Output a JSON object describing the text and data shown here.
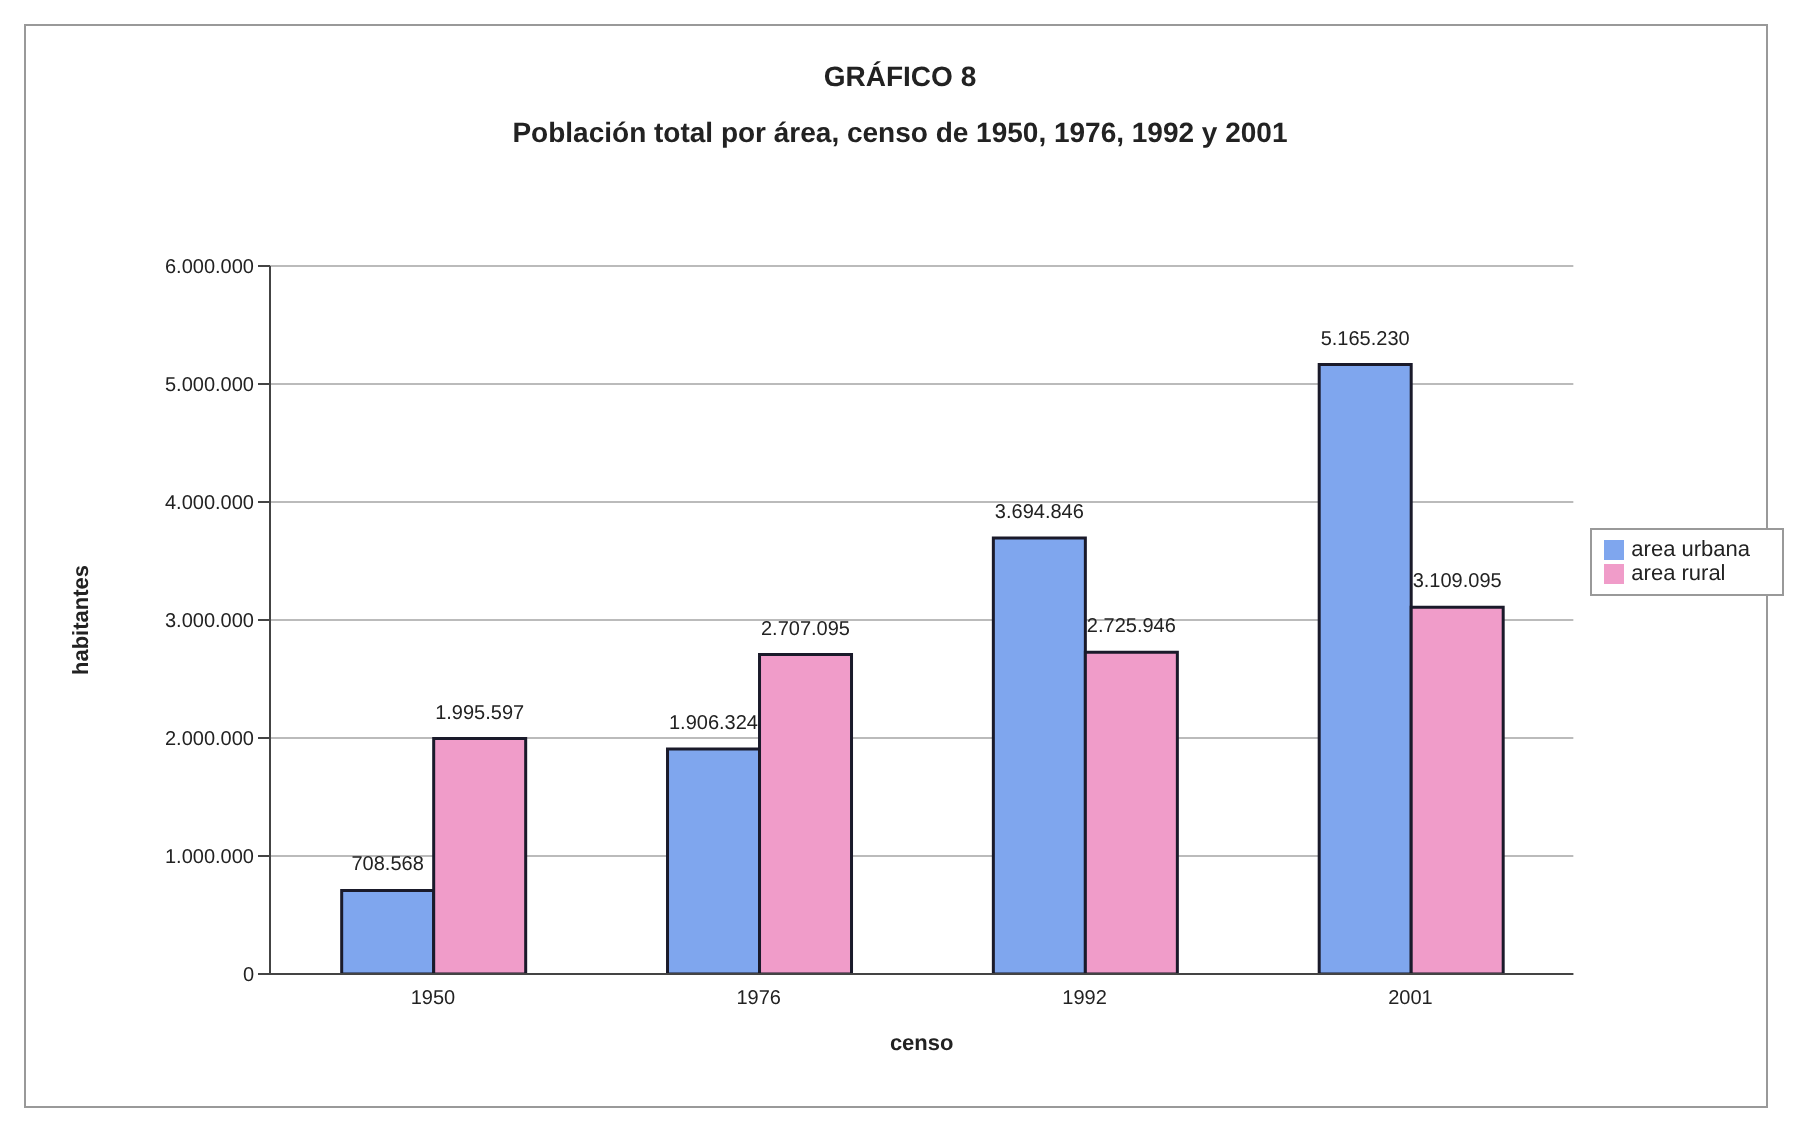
{
  "chart_data": {
    "type": "bar",
    "title": "GRÁFICO 8",
    "subtitle": "Población total por área, censo de 1950, 1976, 1992 y 2001",
    "xlabel": "censo",
    "ylabel": "habitantes",
    "categories": [
      "1950",
      "1976",
      "1992",
      "2001"
    ],
    "series": [
      {
        "name": "area urbana",
        "color": "#7fa6ee",
        "values": [
          708568,
          1906324,
          3694846,
          5165230
        ],
        "value_labels": [
          "708.568",
          "1.906.324",
          "3.694.846",
          "5.165.230"
        ]
      },
      {
        "name": "area rural",
        "color": "#f09cc9",
        "values": [
          1995597,
          2707095,
          2725946,
          3109095
        ],
        "value_labels": [
          "1.995.597",
          "2.707.095",
          "2.725.946",
          "3.109.095"
        ]
      }
    ],
    "ylim": [
      0,
      6000000
    ],
    "yticks": [
      0,
      {
        "value": 1000000,
        "label": "1.000.000"
      },
      {
        "value": 2000000,
        "label": "2.000.000"
      },
      {
        "value": 3000000,
        "label": "3.000.000"
      },
      {
        "value": 4000000,
        "label": "4.000.000"
      },
      {
        "value": 5000000,
        "label": "5.000.000"
      },
      {
        "value": 6000000,
        "label": "6.000.000"
      }
    ],
    "grid": "y",
    "legend": "right"
  }
}
